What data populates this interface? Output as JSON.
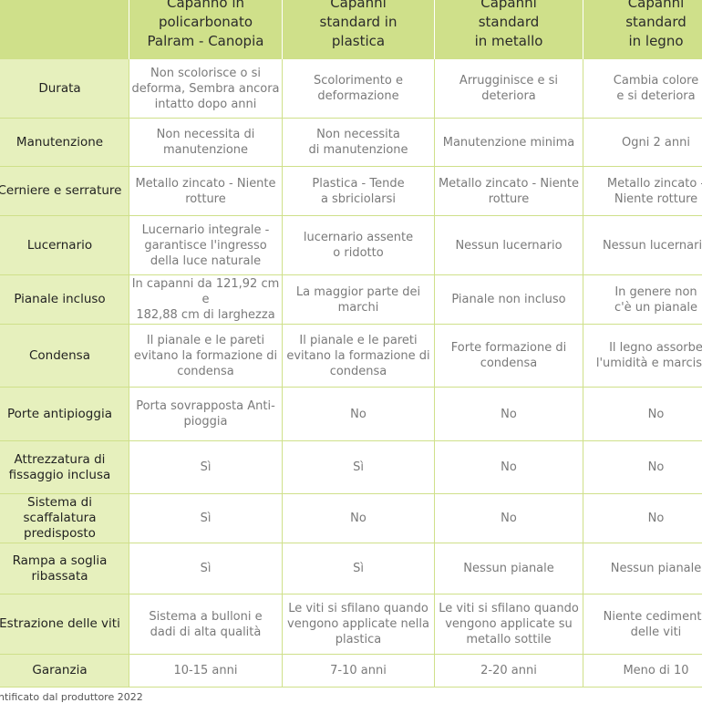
{
  "table": {
    "header": [
      "Capanno in\npolicarbonato\nPalram - Canopia",
      "Capanni\nstandard in\nplastica",
      "Capanni\nstandard\nin metallo",
      "Capanni\nstandard\nin legno"
    ],
    "rows": [
      {
        "label": "Durata",
        "cells": [
          "Non scolorisce o si\ndeforma, Sembra ancora\nintatto dopo anni",
          "Scolorimento e\ndeformazione",
          "Arrugginisce e si\ndeteriora",
          "Cambia colore\ne si deteriora"
        ]
      },
      {
        "label": "Manutenzione",
        "cells": [
          "Non necessita di\nmanutenzione",
          "Non necessita\ndi manutenzione",
          "Manutenzione minima",
          "Ogni 2 anni"
        ]
      },
      {
        "label": "Cerniere e serrature",
        "cells": [
          "Metallo zincato - Niente\nrotture",
          "Plastica - Tende\na sbriciolarsi",
          "Metallo zincato - Niente\nrotture",
          "Metallo zincato -\nNiente rotture"
        ]
      },
      {
        "label": "Lucernario",
        "cells": [
          "Lucernario integrale -\ngarantisce l'ingresso\ndella luce naturale",
          "lucernario assente\no ridotto",
          "Nessun lucernario",
          "Nessun lucernario"
        ]
      },
      {
        "label": "Pianale incluso",
        "cells": [
          "In capanni da 121,92 cm e\n182,88 cm di larghezza",
          "La maggior parte dei\nmarchi",
          "Pianale non incluso",
          "In genere non\nc'è un pianale"
        ]
      },
      {
        "label": "Condensa",
        "cells": [
          "Il pianale e le pareti\nevitano la formazione di\ncondensa",
          "Il pianale e le pareti\nevitano la formazione di\ncondensa",
          "Forte formazione di\ncondensa",
          "Il legno assorbe\nl'umidità e marcisce"
        ]
      },
      {
        "label": "Porte antipioggia",
        "cells": [
          "Porta sovrapposta Anti-\npioggia",
          "No",
          "No",
          "No"
        ]
      },
      {
        "label": "Attrezzatura di\nfissaggio inclusa",
        "cells": [
          "Sì",
          "Sì",
          "No",
          "No"
        ]
      },
      {
        "label": "Sistema di scaffalatura\npredisposto",
        "cells": [
          "Sì",
          "No",
          "No",
          "No"
        ]
      },
      {
        "label": "Rampa a soglia\nribassata",
        "cells": [
          "Sì",
          "Sì",
          "Nessun pianale",
          "Nessun pianale"
        ]
      },
      {
        "label": "Estrazione delle viti",
        "cells": [
          "Sistema a bulloni e\ndadi di alta qualità",
          "Le viti si sfilano quando\nvengono applicate nella\nplastica",
          "Le viti si sfilano quando\nvengono applicate su\nmetallo sottile",
          "Niente cedimento\ndelle viti"
        ]
      },
      {
        "label": "Garanzia",
        "cells": [
          "10-15 anni",
          "7-10 anni",
          "2-20 anni",
          "Meno di 10"
        ]
      }
    ],
    "footnote": "ntificato dal produttore 2022"
  }
}
